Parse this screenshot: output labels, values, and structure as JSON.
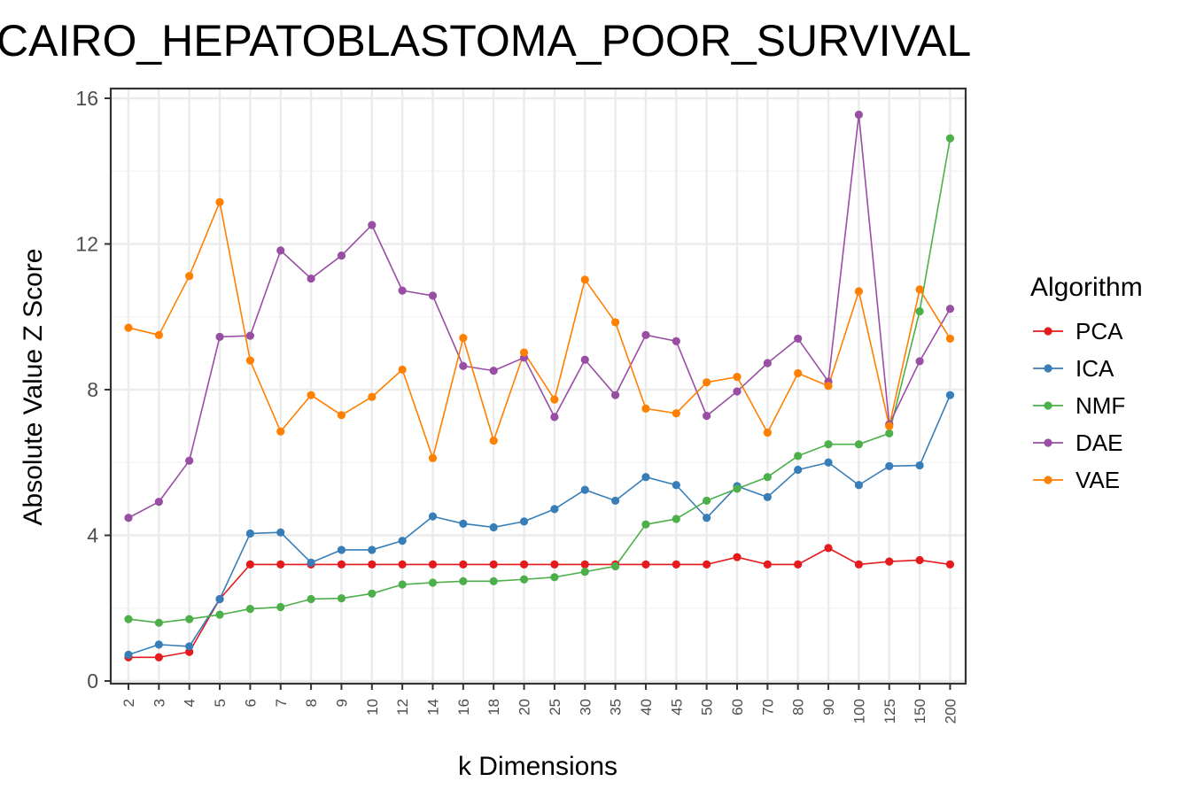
{
  "chart_data": {
    "type": "line",
    "title": "CAIRO_HEPATOBLASTOMA_POOR_SURVIVAL",
    "xlabel": "k Dimensions",
    "ylabel": "Absolute Value Z Score",
    "categories": [
      "2",
      "3",
      "4",
      "5",
      "6",
      "7",
      "8",
      "9",
      "10",
      "12",
      "14",
      "16",
      "18",
      "20",
      "25",
      "30",
      "35",
      "40",
      "45",
      "50",
      "60",
      "70",
      "80",
      "90",
      "100",
      "125",
      "150",
      "200"
    ],
    "yticks": [
      0,
      4,
      8,
      12,
      16
    ],
    "ylim": [
      0,
      16
    ],
    "grid": true,
    "legend": {
      "title": "Algorithm",
      "position": "right"
    },
    "series": [
      {
        "name": "PCA",
        "color": "#e41a1c",
        "values": [
          0.65,
          0.65,
          0.8,
          2.25,
          3.2,
          3.2,
          3.2,
          3.2,
          3.2,
          3.2,
          3.2,
          3.2,
          3.2,
          3.2,
          3.2,
          3.2,
          3.2,
          3.2,
          3.2,
          3.2,
          3.4,
          3.2,
          3.2,
          3.65,
          3.2,
          3.28,
          3.32,
          3.2
        ]
      },
      {
        "name": "ICA",
        "color": "#377eb8",
        "values": [
          0.72,
          1.0,
          0.95,
          2.25,
          4.05,
          4.08,
          3.25,
          3.6,
          3.6,
          3.85,
          4.52,
          4.32,
          4.22,
          4.38,
          4.72,
          5.25,
          4.95,
          5.6,
          5.38,
          4.48,
          5.35,
          5.05,
          5.8,
          6.0,
          5.38,
          5.9,
          5.92,
          7.85
        ]
      },
      {
        "name": "NMF",
        "color": "#4daf4a",
        "values": [
          1.7,
          1.6,
          1.7,
          1.82,
          1.98,
          2.03,
          2.25,
          2.27,
          2.4,
          2.65,
          2.7,
          2.74,
          2.74,
          2.79,
          2.85,
          3.0,
          3.15,
          4.3,
          4.45,
          4.95,
          5.28,
          5.6,
          6.18,
          6.5,
          6.5,
          6.8,
          10.15,
          14.9
        ]
      },
      {
        "name": "DAE",
        "color": "#984ea3",
        "values": [
          4.48,
          4.92,
          6.05,
          9.45,
          9.48,
          11.82,
          11.05,
          11.68,
          12.52,
          10.72,
          10.58,
          8.65,
          8.52,
          8.88,
          7.25,
          8.82,
          7.85,
          9.5,
          9.33,
          7.28,
          7.95,
          8.73,
          9.4,
          8.22,
          15.55,
          7.05,
          8.78,
          10.22
        ]
      },
      {
        "name": "VAE",
        "color": "#ff7f00",
        "values": [
          9.7,
          9.5,
          11.12,
          13.15,
          8.8,
          6.85,
          7.85,
          7.3,
          7.8,
          8.55,
          6.12,
          9.42,
          6.6,
          9.02,
          7.73,
          11.02,
          9.85,
          7.48,
          7.35,
          8.2,
          8.35,
          6.82,
          8.45,
          8.1,
          10.7,
          7.0,
          10.75,
          9.4
        ]
      }
    ]
  }
}
